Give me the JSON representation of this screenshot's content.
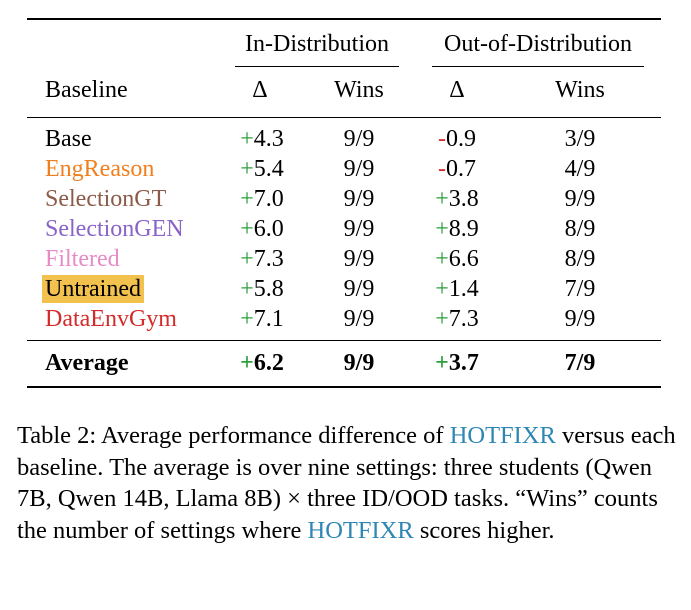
{
  "table": {
    "group_headers": [
      "In-Distribution",
      "Out-of-Distribution"
    ],
    "columns": [
      "Baseline",
      "Δ",
      "Wins",
      "Δ",
      "Wins"
    ],
    "rows": [
      {
        "name": "Base",
        "color": "#000000",
        "highlight": false,
        "id_sign": "+",
        "id_sign_color": "#2e9e3e",
        "id_delta": "4.3",
        "id_wins": "9/9",
        "ood_sign": "-",
        "ood_sign_color": "#d42a2a",
        "ood_delta": "0.9",
        "ood_wins": "3/9"
      },
      {
        "name": "EngReason",
        "color": "#f07f1e",
        "highlight": false,
        "id_sign": "+",
        "id_sign_color": "#2e9e3e",
        "id_delta": "5.4",
        "id_wins": "9/9",
        "ood_sign": "-",
        "ood_sign_color": "#d42a2a",
        "ood_delta": "0.7",
        "ood_wins": "4/9"
      },
      {
        "name": "SelectionGT",
        "color": "#8c5a48",
        "highlight": false,
        "id_sign": "+",
        "id_sign_color": "#2e9e3e",
        "id_delta": "7.0",
        "id_wins": "9/9",
        "ood_sign": "+",
        "ood_sign_color": "#2e9e3e",
        "ood_delta": "3.8",
        "ood_wins": "9/9"
      },
      {
        "name": "SelectionGEN",
        "color": "#8a63c9",
        "highlight": false,
        "id_sign": "+",
        "id_sign_color": "#2e9e3e",
        "id_delta": "6.0",
        "id_wins": "9/9",
        "ood_sign": "+",
        "ood_sign_color": "#2e9e3e",
        "ood_delta": "8.9",
        "ood_wins": "8/9"
      },
      {
        "name": "Filtered",
        "color": "#e88ac6",
        "highlight": false,
        "id_sign": "+",
        "id_sign_color": "#2e9e3e",
        "id_delta": "7.3",
        "id_wins": "9/9",
        "ood_sign": "+",
        "ood_sign_color": "#2e9e3e",
        "ood_delta": "6.6",
        "ood_wins": "8/9"
      },
      {
        "name": "Untrained",
        "color": "#000000",
        "highlight": true,
        "id_sign": "+",
        "id_sign_color": "#2e9e3e",
        "id_delta": "5.8",
        "id_wins": "9/9",
        "ood_sign": "+",
        "ood_sign_color": "#2e9e3e",
        "ood_delta": "1.4",
        "ood_wins": "7/9"
      },
      {
        "name": "DataEnvGym",
        "color": "#d42a2a",
        "highlight": false,
        "id_sign": "+",
        "id_sign_color": "#2e9e3e",
        "id_delta": "7.1",
        "id_wins": "9/9",
        "ood_sign": "+",
        "ood_sign_color": "#2e9e3e",
        "ood_delta": "7.3",
        "ood_wins": "9/9"
      }
    ],
    "average": {
      "name": "Average",
      "id_sign": "+",
      "id_sign_color": "#2e9e3e",
      "id_delta": "6.2",
      "id_wins": "9/9",
      "ood_sign": "+",
      "ood_sign_color": "#2e9e3e",
      "ood_delta": "3.7",
      "ood_wins": "7/9"
    },
    "highlight_color": "#f2c14e"
  },
  "caption": {
    "part1": "Table 2: Average performance difference of ",
    "hotfixr1": "HOTFIXR",
    "part2": " versus each baseline. The average is over nine settings: three students (Qwen 7B, Qwen 14B, Llama 8B) × three ID/OOD tasks. “Wins” counts the number of settings where ",
    "hotfixr2": "HOTFIXR",
    "part3": " scores higher.",
    "hotfixr_color": "#2e86b4"
  }
}
